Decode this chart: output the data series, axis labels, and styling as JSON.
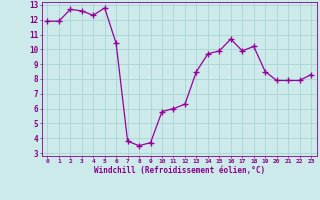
{
  "x": [
    0,
    1,
    2,
    3,
    4,
    5,
    6,
    7,
    8,
    9,
    10,
    11,
    12,
    13,
    14,
    15,
    16,
    17,
    18,
    19,
    20,
    21,
    22,
    23
  ],
  "y": [
    11.9,
    11.9,
    12.7,
    12.6,
    12.3,
    12.8,
    10.4,
    3.8,
    3.5,
    3.7,
    5.8,
    6.0,
    6.3,
    8.5,
    9.7,
    9.9,
    10.7,
    9.9,
    10.2,
    8.5,
    7.9,
    7.9,
    7.9,
    8.3
  ],
  "line_color": "#990099",
  "marker": "+",
  "marker_size": 4,
  "bg_color": "#cceaea",
  "grid_color": "#aad4d4",
  "xlabel": "Windchill (Refroidissement éolien,°C)",
  "xlabel_color": "#880088",
  "tick_color": "#880088",
  "ylim": [
    3,
    13
  ],
  "xlim": [
    -0.5,
    23.5
  ],
  "yticks": [
    3,
    4,
    5,
    6,
    7,
    8,
    9,
    10,
    11,
    12,
    13
  ],
  "xticks": [
    0,
    1,
    2,
    3,
    4,
    5,
    6,
    7,
    8,
    9,
    10,
    11,
    12,
    13,
    14,
    15,
    16,
    17,
    18,
    19,
    20,
    21,
    22,
    23
  ]
}
